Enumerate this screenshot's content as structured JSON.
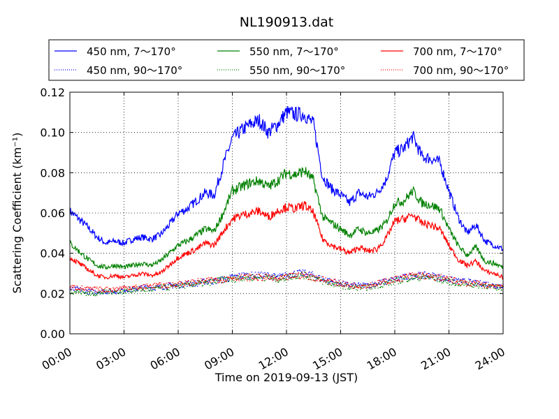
{
  "chart_data": {
    "type": "line",
    "title": "NL190913.dat",
    "xlabel": "Time on 2019-09-13 (JST)",
    "ylabel": "Scattering Coefficient (km⁻¹)",
    "ylim": [
      0,
      0.12
    ],
    "xlim_hours": [
      0,
      24
    ],
    "x_ticks": [
      "00:00",
      "03:00",
      "06:00",
      "09:00",
      "12:00",
      "15:00",
      "18:00",
      "21:00",
      "24:00"
    ],
    "y_ticks": [
      "0.00",
      "0.02",
      "0.04",
      "0.06",
      "0.08",
      "0.10",
      "0.12"
    ],
    "grid": true,
    "legend_position": "top (above plot)",
    "x_hours": [
      0,
      0.5,
      1,
      1.5,
      2,
      2.5,
      3,
      3.5,
      4,
      4.5,
      5,
      5.5,
      6,
      6.5,
      7,
      7.5,
      8,
      8.5,
      9,
      9.5,
      10,
      10.5,
      11,
      11.5,
      12,
      12.5,
      13,
      13.5,
      14,
      14.5,
      15,
      15.5,
      16,
      16.5,
      17,
      17.5,
      18,
      18.5,
      19,
      19.5,
      20,
      20.5,
      21,
      21.5,
      22,
      22.5,
      23,
      23.5,
      24
    ],
    "series": [
      {
        "name": "450 nm, 7～170°",
        "color": "#0000ff",
        "style": "solid",
        "values": [
          0.061,
          0.057,
          0.053,
          0.048,
          0.045,
          0.046,
          0.045,
          0.047,
          0.048,
          0.047,
          0.049,
          0.054,
          0.06,
          0.062,
          0.066,
          0.07,
          0.069,
          0.084,
          0.097,
          0.101,
          0.104,
          0.106,
          0.1,
          0.104,
          0.11,
          0.109,
          0.109,
          0.104,
          0.078,
          0.072,
          0.069,
          0.065,
          0.07,
          0.068,
          0.07,
          0.076,
          0.09,
          0.092,
          0.098,
          0.088,
          0.087,
          0.085,
          0.071,
          0.058,
          0.05,
          0.054,
          0.046,
          0.044,
          0.042
        ]
      },
      {
        "name": "450 nm, 90～170°",
        "color": "#0000ff",
        "style": "dotted",
        "values": [
          0.022,
          0.022,
          0.021,
          0.021,
          0.021,
          0.021,
          0.022,
          0.022,
          0.023,
          0.023,
          0.023,
          0.024,
          0.024,
          0.025,
          0.025,
          0.026,
          0.026,
          0.027,
          0.028,
          0.029,
          0.029,
          0.029,
          0.029,
          0.028,
          0.029,
          0.03,
          0.03,
          0.029,
          0.027,
          0.026,
          0.025,
          0.024,
          0.024,
          0.024,
          0.025,
          0.026,
          0.027,
          0.028,
          0.029,
          0.029,
          0.029,
          0.028,
          0.027,
          0.026,
          0.026,
          0.025,
          0.025,
          0.024,
          0.024
        ]
      },
      {
        "name": "550 nm, 7～170°",
        "color": "#008000",
        "style": "solid",
        "values": [
          0.045,
          0.041,
          0.037,
          0.034,
          0.033,
          0.034,
          0.033,
          0.034,
          0.035,
          0.034,
          0.036,
          0.04,
          0.044,
          0.046,
          0.049,
          0.052,
          0.051,
          0.06,
          0.071,
          0.073,
          0.075,
          0.076,
          0.073,
          0.076,
          0.08,
          0.079,
          0.081,
          0.076,
          0.058,
          0.055,
          0.052,
          0.049,
          0.052,
          0.05,
          0.051,
          0.055,
          0.065,
          0.066,
          0.071,
          0.065,
          0.064,
          0.062,
          0.052,
          0.044,
          0.039,
          0.043,
          0.036,
          0.035,
          0.033
        ]
      },
      {
        "name": "550 nm, 90～170°",
        "color": "#008000",
        "style": "dotted",
        "values": [
          0.021,
          0.021,
          0.02,
          0.02,
          0.021,
          0.021,
          0.021,
          0.022,
          0.022,
          0.022,
          0.023,
          0.023,
          0.024,
          0.024,
          0.025,
          0.025,
          0.026,
          0.027,
          0.027,
          0.028,
          0.028,
          0.028,
          0.028,
          0.027,
          0.028,
          0.029,
          0.029,
          0.028,
          0.026,
          0.025,
          0.024,
          0.023,
          0.023,
          0.023,
          0.024,
          0.025,
          0.026,
          0.027,
          0.028,
          0.028,
          0.028,
          0.027,
          0.026,
          0.025,
          0.025,
          0.024,
          0.024,
          0.023,
          0.023
        ]
      },
      {
        "name": "700 nm, 7～170°",
        "color": "#ff0000",
        "style": "solid",
        "values": [
          0.038,
          0.035,
          0.032,
          0.029,
          0.028,
          0.029,
          0.028,
          0.029,
          0.03,
          0.029,
          0.03,
          0.034,
          0.038,
          0.04,
          0.042,
          0.045,
          0.044,
          0.051,
          0.057,
          0.059,
          0.06,
          0.061,
          0.058,
          0.061,
          0.063,
          0.062,
          0.064,
          0.06,
          0.047,
          0.044,
          0.042,
          0.04,
          0.043,
          0.041,
          0.042,
          0.047,
          0.056,
          0.057,
          0.059,
          0.055,
          0.054,
          0.052,
          0.044,
          0.037,
          0.034,
          0.036,
          0.031,
          0.03,
          0.028
        ]
      },
      {
        "name": "700 nm, 90～170°",
        "color": "#ff0000",
        "style": "dotted",
        "values": [
          0.023,
          0.023,
          0.022,
          0.022,
          0.022,
          0.022,
          0.023,
          0.023,
          0.023,
          0.024,
          0.024,
          0.024,
          0.025,
          0.025,
          0.026,
          0.026,
          0.027,
          0.027,
          0.028,
          0.028,
          0.028,
          0.028,
          0.028,
          0.027,
          0.028,
          0.029,
          0.029,
          0.028,
          0.027,
          0.026,
          0.025,
          0.024,
          0.024,
          0.024,
          0.025,
          0.026,
          0.027,
          0.028,
          0.029,
          0.029,
          0.028,
          0.028,
          0.027,
          0.026,
          0.025,
          0.025,
          0.024,
          0.024,
          0.024
        ]
      }
    ]
  }
}
